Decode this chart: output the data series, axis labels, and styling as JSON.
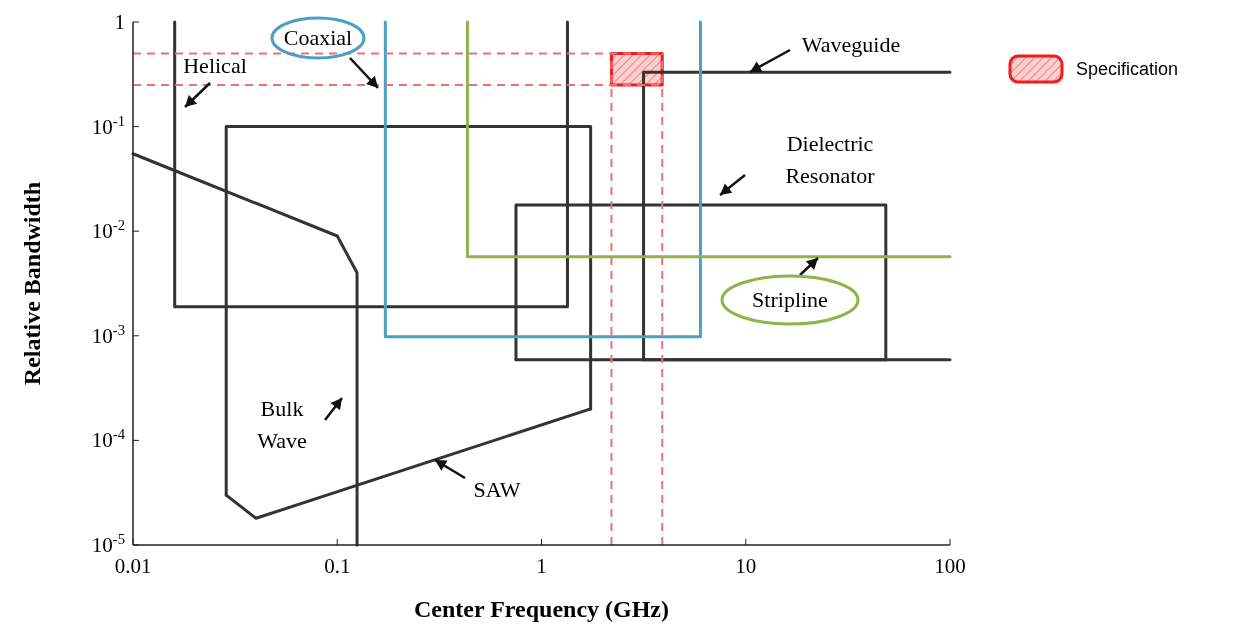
{
  "chart_data": {
    "type": "line",
    "xlabel": "Center Frequency (GHz)",
    "ylabel": "Relative Bandwidth",
    "log": "xy",
    "xlim": [
      0.01,
      100
    ],
    "ylim": [
      1e-05,
      1
    ],
    "xticks": [
      0.01,
      0.1,
      1,
      10,
      100
    ],
    "yticks": [
      {
        "value": 1e-05,
        "label": "10$^{-5}$"
      },
      {
        "value": 0.0001,
        "label": "10$^{-4}$"
      },
      {
        "value": 0.001,
        "label": "10$^{-3}$"
      },
      {
        "value": 0.01,
        "label": "10$^{-2}$"
      },
      {
        "value": 0.1,
        "label": "10$^{-1}$"
      },
      1
    ],
    "grid": false,
    "legend": "top right",
    "marker": "none",
    "line_style": "solid",
    "series": [
      {
        "color": "#333333",
        "x": [
          0.016,
          0.016,
          1.34,
          1.34
        ],
        "values": [
          1,
          0.0019,
          0.0019,
          1
        ]
      },
      {
        "color": "#333333",
        "x": [
          0.01,
          0.1,
          0.125,
          0.125
        ],
        "values": [
          0.055,
          0.009,
          0.004,
          1e-05
        ]
      },
      {
        "color": "#333333",
        "x": [
          0.0286,
          0.0286,
          1.74,
          1.74
        ],
        "values": [
          3e-05,
          0.1,
          0.1,
          0.0002
        ]
      },
      {
        "color": "#333333",
        "x": [
          0.0286,
          0.04,
          1.74
        ],
        "values": [
          3e-05,
          1.8e-05,
          0.0002
        ]
      },
      {
        "color": "#333333",
        "x": [
          0.75,
          0.75,
          48.5,
          48.5
        ],
        "values": [
          0.00059,
          0.0178,
          0.0178,
          0.00059
        ]
      },
      {
        "color": "#333333",
        "x": [
          0.75,
          48.5
        ],
        "values": [
          0.00059,
          0.00059
        ]
      },
      {
        "color": "#333333",
        "x": [
          3.16,
          3.16,
          100
        ],
        "values": [
          0.00059,
          0.33,
          0.33
        ]
      },
      {
        "color": "#333333",
        "x": [
          3.16,
          100
        ],
        "values": [
          0.00059,
          0.00059
        ]
      },
      {
        "color": "#4a9fc4",
        "x": [
          0.172,
          0.172,
          6,
          6
        ],
        "values": [
          1,
          0.00098,
          0.00098,
          1
        ]
      },
      {
        "color": "#8db54b",
        "x": [
          0.434,
          0.434,
          100
        ],
        "values": [
          1,
          0.0057,
          0.0057
        ]
      },
      {
        "type": "area",
        "name": "Specification",
        "color": "#ee1c1c",
        "x": [
          2.2,
          3.9,
          3.9,
          2.2,
          2.2
        ],
        "values": [
          0.5,
          0.5,
          0.25,
          0.25,
          0.5
        ]
      }
    ],
    "ref_lines": [
      {
        "axis": "x",
        "value": 2.2,
        "color": "#f07070",
        "line_style": "dashed"
      },
      {
        "axis": "x",
        "value": 3.9,
        "color": "#f07070",
        "line_style": "dashed"
      },
      {
        "axis": "y",
        "value": 0.5,
        "color": "#f07070",
        "line_style": "dashed"
      },
      {
        "axis": "y",
        "value": 0.25,
        "color": "#f07070",
        "line_style": "dashed"
      }
    ],
    "annotations": [
      "Helical",
      "Coaxial",
      "Waveguide",
      "Dielectric\nResonator",
      "Stripline",
      "Bulk\nWave",
      "SAW"
    ]
  }
}
